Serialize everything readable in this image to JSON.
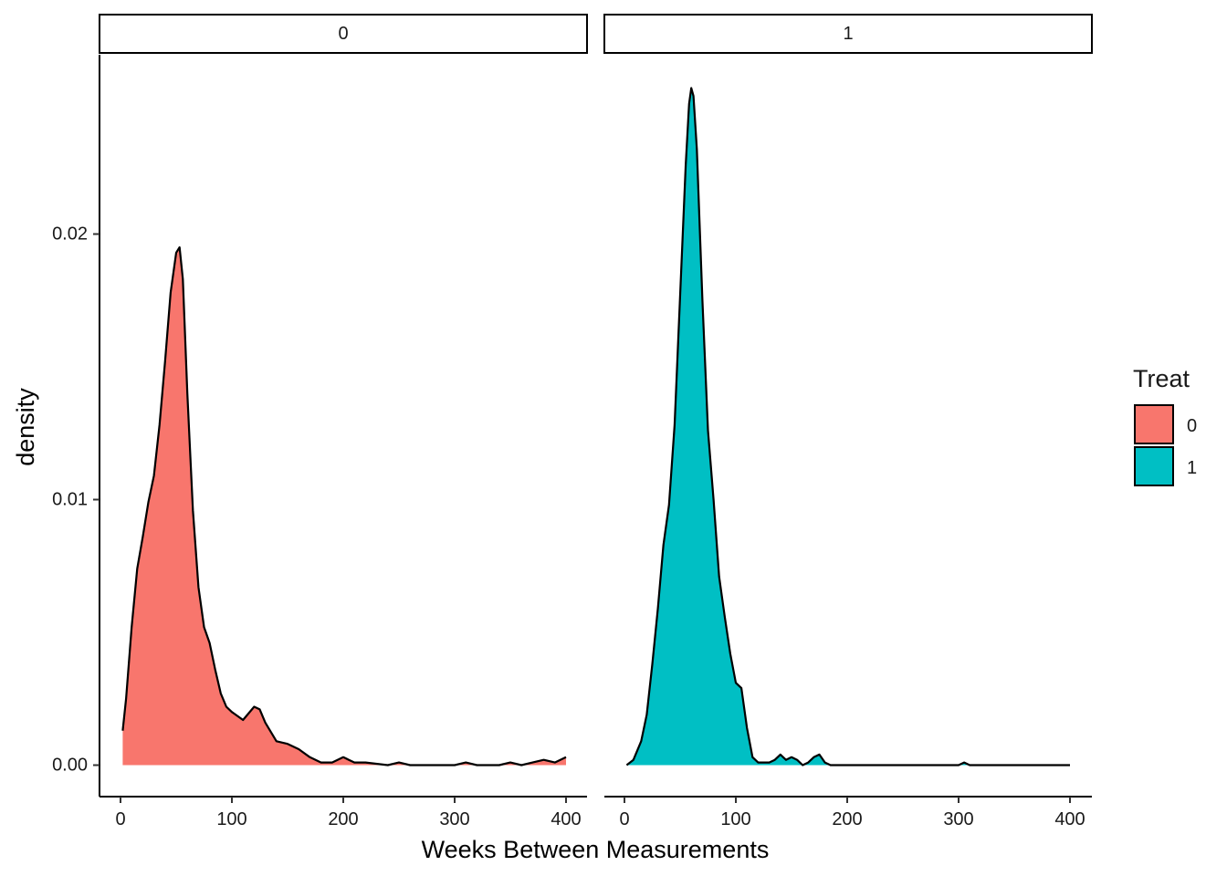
{
  "chart_data": {
    "type": "area",
    "subtype": "density",
    "facet_variable": "Treat",
    "xlabel": "Weeks Between Measurements",
    "ylabel": "density",
    "xlim": [
      0,
      400
    ],
    "ylim": [
      0,
      0.025
    ],
    "x_ticks": [
      0,
      100,
      200,
      300,
      400
    ],
    "x_tick_labels": [
      "0",
      "100",
      "200",
      "300",
      "400"
    ],
    "y_ticks": [
      0,
      0.01,
      0.02
    ],
    "y_tick_labels": [
      "0.00",
      "0.01",
      "0.02"
    ],
    "grid": false,
    "legend": {
      "title": "Treat",
      "position": "right",
      "entries": [
        {
          "label": "0",
          "color": "#F8766D"
        },
        {
          "label": "1",
          "color": "#00BFC4"
        }
      ]
    },
    "panels": [
      {
        "strip_label": "0",
        "color": "#F8766D",
        "x": [
          2,
          5,
          10,
          15,
          20,
          25,
          30,
          35,
          40,
          45,
          50,
          53,
          56,
          60,
          65,
          70,
          75,
          80,
          85,
          90,
          95,
          100,
          110,
          120,
          125,
          130,
          140,
          150,
          160,
          170,
          180,
          190,
          200,
          205,
          210,
          220,
          240,
          250,
          260,
          280,
          300,
          310,
          320,
          340,
          350,
          360,
          370,
          380,
          390,
          400
        ],
        "y": [
          0.0013,
          0.0025,
          0.0052,
          0.0074,
          0.0086,
          0.0099,
          0.0109,
          0.0128,
          0.0152,
          0.0178,
          0.0193,
          0.0195,
          0.0183,
          0.014,
          0.0096,
          0.0067,
          0.0052,
          0.0046,
          0.0036,
          0.0027,
          0.0022,
          0.002,
          0.0017,
          0.0022,
          0.0021,
          0.0016,
          0.0009,
          0.0008,
          0.0006,
          0.0003,
          0.0001,
          0.0001,
          0.0003,
          0.0002,
          0.0001,
          0.0001,
          0.0,
          0.0001,
          0.0,
          0.0,
          0.0,
          0.0001,
          0.0,
          0.0,
          0.0001,
          0.0,
          0.0001,
          0.0002,
          0.0001,
          0.0003
        ]
      },
      {
        "strip_label": "1",
        "color": "#00BFC4",
        "x": [
          2,
          8,
          15,
          20,
          25,
          30,
          35,
          40,
          45,
          50,
          55,
          58,
          60,
          62,
          65,
          70,
          75,
          80,
          85,
          90,
          95,
          100,
          105,
          110,
          115,
          120,
          125,
          130,
          135,
          140,
          145,
          150,
          155,
          160,
          165,
          170,
          175,
          180,
          185,
          190,
          200,
          250,
          300,
          305,
          310,
          400
        ],
        "y": [
          0.0,
          0.0002,
          0.0009,
          0.0019,
          0.0038,
          0.0059,
          0.0083,
          0.0098,
          0.0128,
          0.0177,
          0.0226,
          0.0249,
          0.0255,
          0.0252,
          0.0232,
          0.0175,
          0.0126,
          0.01,
          0.0071,
          0.0056,
          0.0042,
          0.0031,
          0.0029,
          0.0014,
          0.0003,
          0.0001,
          0.0001,
          0.0001,
          0.0002,
          0.0004,
          0.0002,
          0.0003,
          0.0002,
          0.0,
          0.0001,
          0.0003,
          0.0004,
          0.0001,
          0.0,
          0.0,
          0.0,
          0.0,
          0.0,
          0.0001,
          0.0,
          0.0
        ]
      }
    ]
  }
}
